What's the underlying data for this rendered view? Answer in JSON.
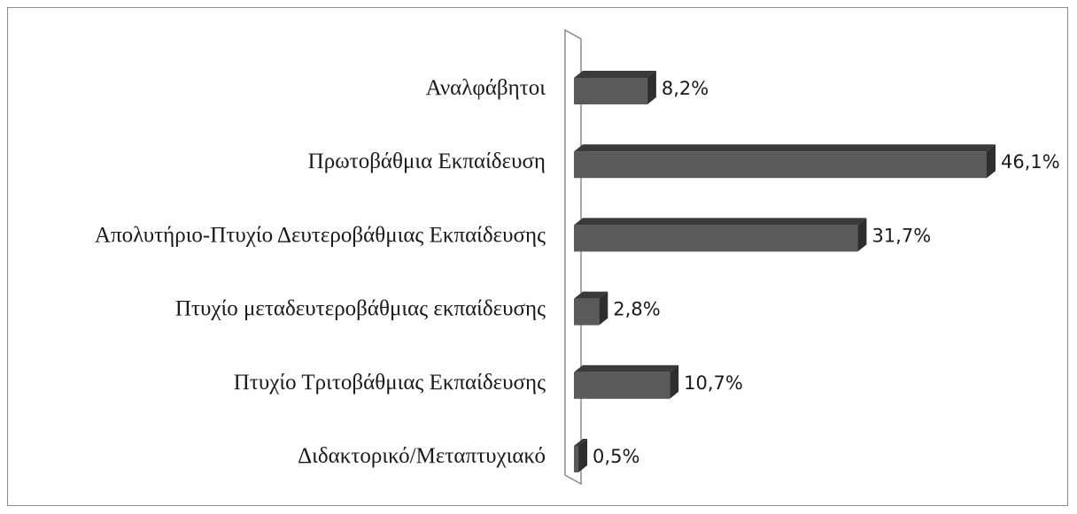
{
  "chart_data": {
    "type": "bar",
    "orientation": "horizontal",
    "three_d": true,
    "categories": [
      "Αναλφάβητοι",
      "Πρωτοβάθμια Εκπαίδευση",
      "Απολυτήριο-Πτυχίο Δευτεροβάθμιας Εκπαίδευσης",
      "Πτυχίο μεταδευτεροβάθμιας εκπαίδευσης",
      "Πτυχίο Τριτοβάθμιας Εκπαίδευσης",
      "Διδακτορικό/Μεταπτυχιακό"
    ],
    "values": [
      8.2,
      46.1,
      31.7,
      2.8,
      10.7,
      0.5
    ],
    "value_labels": [
      "8,2%",
      "46,1%",
      "31,7%",
      "2,8%",
      "10,7%",
      "0,5%"
    ],
    "unit": "%",
    "xlim": [
      0,
      46.1
    ],
    "grid": false,
    "legend": "none",
    "title": "",
    "xlabel": "",
    "ylabel": "",
    "colors": {
      "bar_front": "#5a5a5a",
      "bar_top": "#3a3a3a",
      "bar_side": "#2e2e2e",
      "wall_stroke": "#8a8a8a"
    }
  }
}
